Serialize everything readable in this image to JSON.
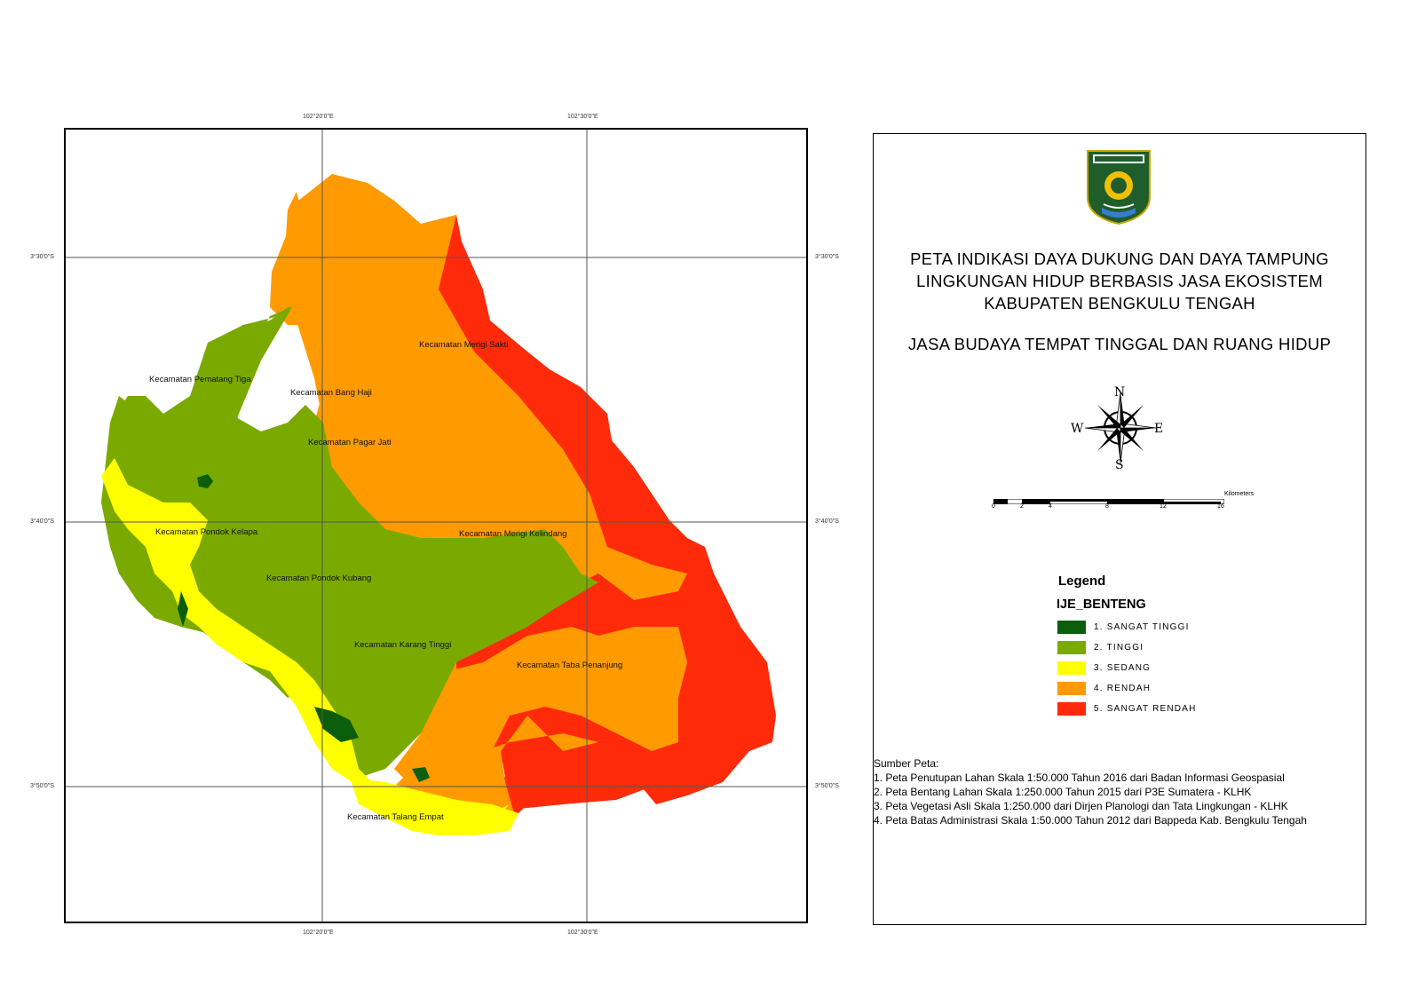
{
  "map": {
    "coords": {
      "top_e1": "102°20'0\"E",
      "top_e2": "102°30'0\"E",
      "bottom_e1": "102°20'0\"E",
      "bottom_e2": "102°30'0\"E",
      "left_n1": "3°30'0\"S",
      "left_n2": "3°40'0\"S",
      "left_n3": "3°50'0\"S",
      "right_n1": "3°30'0\"S",
      "right_n2": "3°40'0\"S",
      "right_n3": "3°50'0\"S"
    },
    "districts": [
      "Kecamatan Merigi Sakti",
      "Kecamatan Pematang Tiga",
      "Kecamatan Bang Haji",
      "Kecamatan Pagar Jati",
      "Kecamatan Pondok Kelapa",
      "Kecamatan Merigi Kelindang",
      "Kecamatan Pondok Kubang",
      "Kecamatan Karang Tinggi",
      "Kecamatan Taba Penanjung",
      "Kecamatan Talang Empat"
    ],
    "colors": {
      "sangat_tinggi": "#0b5e0b",
      "tinggi": "#7aaa00",
      "sedang": "#ffff00",
      "rendah": "#ff9a00",
      "sangat_rendah": "#ff2a0a"
    }
  },
  "panel": {
    "logo": "kabupaten-bengkulu-tengah-emblem",
    "title_line1": "PETA INDIKASI DAYA DUKUNG DAN DAYA TAMPUNG",
    "title_line2": "LINGKUNGAN HIDUP BERBASIS JASA EKOSISTEM",
    "title_line3": "KABUPATEN BENGKULU TENGAH",
    "subtitle": "JASA BUDAYA TEMPAT TINGGAL DAN RUANG HIDUP",
    "compass": {
      "n": "N",
      "s": "S",
      "e": "E",
      "w": "W"
    },
    "scale": {
      "unit": "Kilometers",
      "ticks": [
        "0",
        "2",
        "4",
        "8",
        "12",
        "16"
      ]
    },
    "legend": {
      "title": "Legend",
      "layer": "IJE_BENTENG",
      "items": [
        {
          "label": "1. SANGAT TINGGI",
          "color": "#0b5e0b"
        },
        {
          "label": "2. TINGGI",
          "color": "#7aaa00"
        },
        {
          "label": "3. SEDANG",
          "color": "#ffff00"
        },
        {
          "label": "4. RENDAH",
          "color": "#ff9a00"
        },
        {
          "label": "5. SANGAT RENDAH",
          "color": "#ff2a0a"
        }
      ]
    },
    "sources": {
      "heading": "Sumber Peta:",
      "lines": [
        "1. Peta Penutupan Lahan Skala 1:50.000 Tahun 2016 dari Badan Informasi Geospasial",
        "2. Peta Bentang Lahan Skala 1:250.000 Tahun 2015 dari  P3E Sumatera - KLHK",
        "3. Peta Vegetasi Asli Skala 1:250.000 dari Dirjen Planologi dan Tata Lingkungan - KLHK",
        "4. Peta Batas Administrasi Skala 1:50.000 Tahun 2012 dari Bappeda Kab. Bengkulu Tengah"
      ]
    }
  }
}
